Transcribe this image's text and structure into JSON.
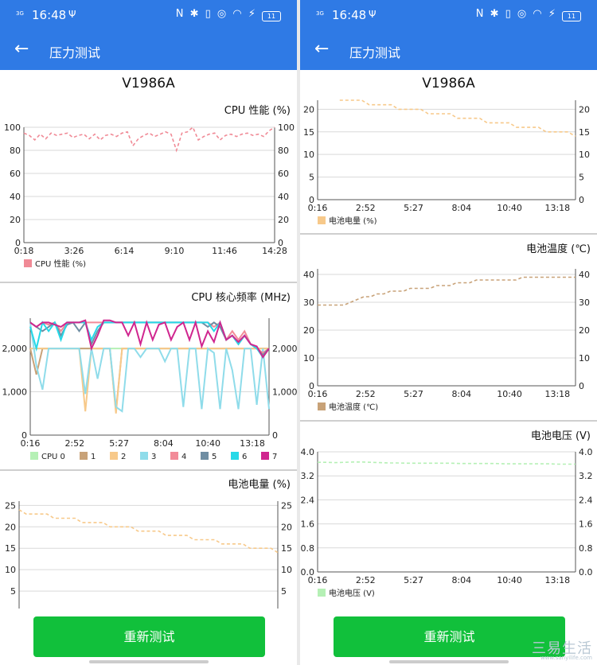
{
  "status": {
    "signal": "3G",
    "time": "16:48",
    "usb_glyph": "Ψ",
    "icons": "N ✱ ▯ ◎ ◠ ⚡",
    "battery": "11"
  },
  "appbar": {
    "title": "压力测试"
  },
  "device": "V1986A",
  "button_label": "重新测试",
  "watermark": {
    "text": "三易生活",
    "sub": "www.sanyilife.com"
  },
  "chart_data": [
    {
      "id": "cpu_perf",
      "type": "line",
      "title": "CPU 性能 (%)",
      "x_ticks": [
        "0:18",
        "3:26",
        "6:14",
        "9:10",
        "11:46",
        "14:28"
      ],
      "ylim": [
        0,
        100
      ],
      "y_ticks": [
        0,
        20,
        40,
        60,
        80,
        100
      ],
      "grid": true,
      "legend": "bottom-left",
      "series": [
        {
          "name": "CPU 性能 (%)",
          "color": "#f08a96",
          "values": [
            95,
            93,
            89,
            94,
            90,
            95,
            93,
            94,
            95,
            91,
            93,
            94,
            90,
            94,
            89,
            93,
            94,
            92,
            95,
            96,
            84,
            90,
            93,
            95,
            92,
            94,
            96,
            94,
            80,
            95,
            96,
            100,
            89,
            92,
            94,
            95,
            89,
            93,
            94,
            92,
            94,
            95,
            93,
            94,
            92,
            97,
            100
          ]
        }
      ]
    },
    {
      "id": "cpu_freq",
      "type": "line",
      "title": "CPU 核心频率 (MHz)",
      "x_ticks": [
        "0:16",
        "2:52",
        "5:27",
        "8:04",
        "10:40",
        "13:18"
      ],
      "ylim": [
        0,
        2700
      ],
      "y_ticks": [
        0,
        1000,
        2000
      ],
      "y_tick_labels": [
        "0",
        "1,000",
        "2,000"
      ],
      "grid": true,
      "legend": "bottom",
      "series": [
        {
          "name": "CPU 0",
          "color": "#b5f0b5",
          "values": [
            2000,
            2000,
            2000,
            2000,
            2000,
            2000,
            2000,
            2000,
            2000,
            2000,
            2000,
            2000,
            2000,
            2000,
            2000,
            2000,
            2000,
            2000,
            2000,
            2000,
            2000,
            2000,
            2000,
            2000,
            2000,
            2000,
            2000,
            2000,
            2000,
            2000,
            2000,
            2000,
            2000,
            2000,
            2000,
            2000,
            2000,
            2000,
            2000,
            2000
          ]
        },
        {
          "name": "1",
          "color": "#c8a278",
          "values": [
            2000,
            1400,
            2000,
            2000,
            2000,
            2000,
            2000,
            2000,
            2000,
            2000,
            2000,
            2000,
            2000,
            2000,
            550,
            2000,
            2000,
            2000,
            2000,
            2000,
            2000,
            2000,
            2000,
            2000,
            2000,
            2000,
            2000,
            2000,
            2000,
            2000,
            2000,
            2000,
            2000,
            2000,
            2000,
            2000,
            2000,
            2000,
            2000,
            2000
          ]
        },
        {
          "name": "2",
          "color": "#f7c98a",
          "values": [
            2000,
            2000,
            2000,
            2000,
            2000,
            2000,
            2000,
            2000,
            2000,
            550,
            2000,
            2000,
            2000,
            2000,
            500,
            2000,
            2000,
            2000,
            2000,
            2000,
            2000,
            2000,
            2000,
            2000,
            2000,
            2000,
            2000,
            2000,
            2000,
            2000,
            2000,
            2000,
            2000,
            2000,
            2000,
            2000,
            2000,
            2000,
            2000,
            2000
          ]
        },
        {
          "name": "3",
          "color": "#8fdcea",
          "values": [
            2600,
            1600,
            1050,
            2000,
            2000,
            2000,
            2000,
            2000,
            2000,
            950,
            2000,
            1300,
            2000,
            2000,
            650,
            550,
            2000,
            2000,
            1800,
            2000,
            2000,
            2000,
            1700,
            2000,
            2000,
            650,
            2000,
            2000,
            600,
            2000,
            1900,
            600,
            2000,
            1500,
            600,
            2000,
            2000,
            700,
            2000,
            600
          ]
        },
        {
          "name": "4",
          "color": "#f28b98",
          "values": [
            2600,
            2500,
            2600,
            2550,
            2600,
            2400,
            2600,
            2600,
            2600,
            2600,
            2600,
            2600,
            2600,
            2600,
            2600,
            2600,
            2600,
            2600,
            2600,
            2600,
            2600,
            2600,
            2600,
            2600,
            2600,
            2600,
            2600,
            2600,
            2600,
            2600,
            2500,
            2600,
            2200,
            2400,
            2200,
            2400,
            2100,
            2000,
            1900,
            2000
          ]
        },
        {
          "name": "5",
          "color": "#6f8ea3",
          "values": [
            2600,
            2500,
            2400,
            2500,
            2600,
            2300,
            2550,
            2600,
            2400,
            2600,
            2100,
            2400,
            2600,
            2600,
            2600,
            2600,
            2600,
            2600,
            2600,
            2600,
            2600,
            2600,
            2600,
            2600,
            2600,
            2600,
            2600,
            2600,
            2600,
            2500,
            2600,
            2500,
            2200,
            2300,
            2100,
            2300,
            2100,
            2000,
            1850,
            2000
          ]
        },
        {
          "name": "6",
          "color": "#27d9e8",
          "values": [
            2500,
            2000,
            2600,
            2400,
            2600,
            2200,
            2600,
            2600,
            2600,
            2600,
            2200,
            2500,
            2600,
            2600,
            2600,
            2600,
            2600,
            2600,
            2600,
            2600,
            2600,
            2600,
            2600,
            2600,
            2600,
            2600,
            2600,
            2600,
            2600,
            2600,
            2400,
            2600,
            2200,
            2300,
            2100,
            2300,
            2100,
            2000,
            1800,
            2000
          ]
        },
        {
          "name": "7",
          "color": "#d0268f",
          "values": [
            2600,
            2500,
            2600,
            2600,
            2550,
            2500,
            2600,
            2600,
            2600,
            2650,
            2000,
            2300,
            2650,
            2650,
            2600,
            2600,
            2300,
            2600,
            2100,
            2600,
            2200,
            2550,
            2600,
            2200,
            2500,
            2600,
            2200,
            2600,
            2050,
            2400,
            2150,
            2600,
            2200,
            2300,
            2150,
            2300,
            2100,
            2050,
            1800,
            2000
          ]
        }
      ]
    },
    {
      "id": "battery_left",
      "type": "line",
      "title": "电池电量 (%)",
      "x_ticks": [],
      "ylim": [
        0,
        26
      ],
      "y_ticks": [
        5,
        10,
        15,
        20,
        25
      ],
      "grid": true,
      "series": [
        {
          "name": "电池电量 (%)",
          "color": "#f7c98a",
          "values": [
            24,
            23,
            23,
            23,
            23,
            22,
            22,
            22,
            22,
            21,
            21,
            21,
            21,
            20,
            20,
            20,
            20,
            19,
            19,
            19,
            19,
            18,
            18,
            18,
            18,
            17,
            17,
            17,
            17,
            16,
            16,
            16,
            16,
            15,
            15,
            15,
            15,
            14
          ]
        }
      ]
    },
    {
      "id": "battery_right",
      "type": "line",
      "title": "",
      "x_ticks": [
        "0:16",
        "2:52",
        "5:27",
        "8:04",
        "10:40",
        "13:18"
      ],
      "ylim": [
        0,
        22
      ],
      "y_ticks": [
        0,
        5,
        10,
        15,
        20
      ],
      "grid": true,
      "legend": "bottom-left",
      "series": [
        {
          "name": "电池电量 (%)",
          "color": "#f7c98a",
          "values": [
            null,
            null,
            null,
            22,
            22,
            22,
            22,
            21,
            21,
            21,
            21,
            20,
            20,
            20,
            20,
            19,
            19,
            19,
            19,
            18,
            18,
            18,
            18,
            17,
            17,
            17,
            17,
            16,
            16,
            16,
            16,
            15,
            15,
            15,
            15,
            14
          ]
        }
      ]
    },
    {
      "id": "battery_temp",
      "type": "line",
      "title": "电池温度 (℃)",
      "x_ticks": [
        "0:16",
        "2:52",
        "5:27",
        "8:04",
        "10:40",
        "13:18"
      ],
      "ylim": [
        0,
        42
      ],
      "y_ticks": [
        0,
        10,
        20,
        30,
        40
      ],
      "grid": true,
      "legend": "bottom-left",
      "series": [
        {
          "name": "电池温度 (℃)",
          "color": "#c8a278",
          "values": [
            29,
            29,
            29,
            29,
            29,
            30,
            31,
            32,
            32,
            33,
            33,
            34,
            34,
            34,
            35,
            35,
            35,
            35,
            36,
            36,
            36,
            37,
            37,
            37,
            38,
            38,
            38,
            38,
            38,
            38,
            38,
            39,
            39,
            39,
            39,
            39,
            39,
            39,
            39,
            39
          ]
        }
      ]
    },
    {
      "id": "battery_voltage",
      "type": "line",
      "title": "电池电压 (V)",
      "x_ticks": [
        "0:16",
        "2:52",
        "5:27",
        "8:04",
        "10:40",
        "13:18"
      ],
      "ylim": [
        0,
        4.0
      ],
      "y_ticks": [
        0,
        0.8,
        1.6,
        2.4,
        3.2,
        4.0
      ],
      "y_tick_labels": [
        "0.0",
        "0.8",
        "1.6",
        "2.4",
        "3.2",
        "4.0"
      ],
      "grid": true,
      "legend": "bottom-left",
      "series": [
        {
          "name": "电池电压 (V)",
          "color": "#b5f0b5",
          "values": [
            3.65,
            3.65,
            3.64,
            3.65,
            3.66,
            3.66,
            3.65,
            3.64,
            3.63,
            3.63,
            3.62,
            3.62,
            3.62,
            3.62,
            3.62,
            3.62,
            3.61,
            3.61,
            3.61,
            3.61,
            3.61,
            3.6,
            3.6,
            3.6,
            3.6,
            3.6,
            3.6,
            3.59,
            3.59,
            3.59
          ]
        }
      ]
    }
  ]
}
